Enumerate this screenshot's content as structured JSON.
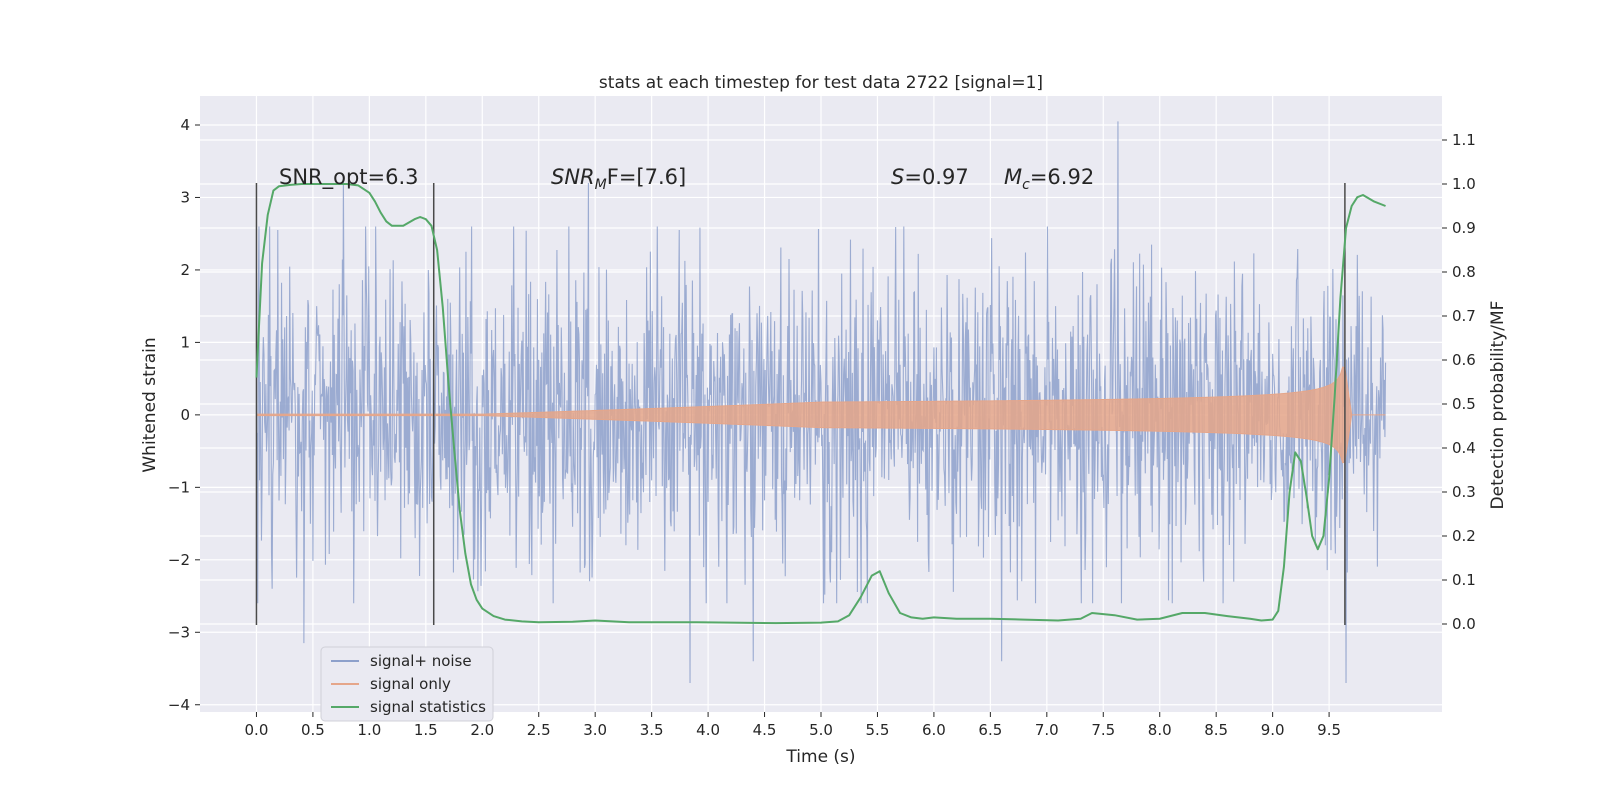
{
  "chart_data": {
    "type": "line",
    "title": "stats at each timestep for test data 2722 [signal=1]",
    "xlabel": "Time (s)",
    "ylabel_left": "Whitened strain",
    "ylabel_right": "Detection probability/MF",
    "xlim": [
      -0.5,
      10.5
    ],
    "ylim_left": [
      -4.1,
      4.4
    ],
    "ylim_right": [
      -0.2,
      1.2
    ],
    "x_ticks": [
      "0.0",
      "0.5",
      "1.0",
      "1.5",
      "2.0",
      "2.5",
      "3.0",
      "3.5",
      "4.0",
      "4.5",
      "5.0",
      "5.5",
      "6.0",
      "6.5",
      "7.0",
      "7.5",
      "8.0",
      "8.5",
      "9.0",
      "9.5"
    ],
    "y_ticks_left": [
      "4",
      "3",
      "2",
      "1",
      "0",
      "−1",
      "−2",
      "−3",
      "−4"
    ],
    "y_ticks_right": [
      "1.1",
      "1.0",
      "0.9",
      "0.8",
      "0.7",
      "0.6",
      "0.5",
      "0.4",
      "0.3",
      "0.2",
      "0.1",
      "0.0"
    ],
    "grid": true,
    "annotations": {
      "snr_opt": "SNR_opt=6.3",
      "snr_mf_sym": "SNR",
      "snr_mf_sub": "M",
      "snr_mf_rest": "F=[7.6]",
      "s_sym": "S",
      "s_rest": "=0.97",
      "mc_sym": "M",
      "mc_sub": "c",
      "mc_rest": "=6.92"
    },
    "vertical_markers_s": [
      0.0,
      1.57,
      9.64
    ],
    "legend": {
      "position": "lower-left",
      "entries": [
        "signal+ noise",
        "signal only",
        "signal statistics"
      ]
    },
    "series": [
      {
        "name": "signal+ noise",
        "axis": "left",
        "color": "#8da0cb",
        "style": "noise band",
        "x_range": [
          0.0,
          10.0
        ],
        "typical_amplitude": 1.4,
        "notable_peaks": [
          {
            "x": 0.77,
            "y": 3.3
          },
          {
            "x": 2.94,
            "y": 3.2
          },
          {
            "x": 7.63,
            "y": 4.05
          },
          {
            "x": 0.42,
            "y": -3.15
          },
          {
            "x": 3.84,
            "y": -3.7
          },
          {
            "x": 4.4,
            "y": -3.4
          },
          {
            "x": 6.6,
            "y": -3.4
          },
          {
            "x": 9.65,
            "y": -3.7
          }
        ]
      },
      {
        "name": "signal only",
        "axis": "left",
        "color": "#e5a68a",
        "style": "chirp",
        "x_range": [
          0.0,
          10.0
        ],
        "peak_time": 9.64,
        "peak_amplitude": 0.65
      },
      {
        "name": "signal statistics",
        "axis": "right",
        "color": "#55a868",
        "x": [
          0.0,
          0.05,
          0.1,
          0.15,
          0.2,
          0.3,
          0.4,
          0.5,
          0.6,
          0.7,
          0.8,
          0.9,
          1.0,
          1.05,
          1.1,
          1.15,
          1.2,
          1.3,
          1.4,
          1.45,
          1.5,
          1.55,
          1.6,
          1.65,
          1.7,
          1.75,
          1.8,
          1.85,
          1.9,
          1.95,
          2.0,
          2.1,
          2.2,
          2.35,
          2.5,
          2.8,
          3.0,
          3.3,
          3.6,
          3.9,
          4.2,
          4.6,
          5.0,
          5.15,
          5.25,
          5.35,
          5.45,
          5.52,
          5.6,
          5.7,
          5.8,
          5.9,
          6.0,
          6.2,
          6.5,
          6.8,
          7.1,
          7.3,
          7.4,
          7.6,
          7.8,
          8.0,
          8.2,
          8.4,
          8.6,
          8.8,
          8.9,
          9.0,
          9.05,
          9.1,
          9.15,
          9.2,
          9.25,
          9.3,
          9.35,
          9.4,
          9.45,
          9.5,
          9.55,
          9.6,
          9.65,
          9.7,
          9.75,
          9.8,
          9.9,
          10.0
        ],
        "y": [
          0.56,
          0.82,
          0.93,
          0.985,
          0.995,
          0.998,
          1.0,
          1.0,
          1.0,
          1.0,
          1.0,
          0.997,
          0.98,
          0.96,
          0.935,
          0.915,
          0.905,
          0.905,
          0.92,
          0.925,
          0.92,
          0.905,
          0.85,
          0.72,
          0.55,
          0.4,
          0.26,
          0.16,
          0.09,
          0.055,
          0.035,
          0.018,
          0.01,
          0.006,
          0.004,
          0.005,
          0.008,
          0.004,
          0.004,
          0.004,
          0.003,
          0.002,
          0.003,
          0.006,
          0.02,
          0.06,
          0.11,
          0.12,
          0.07,
          0.025,
          0.015,
          0.012,
          0.015,
          0.012,
          0.012,
          0.01,
          0.008,
          0.012,
          0.025,
          0.02,
          0.01,
          0.012,
          0.025,
          0.025,
          0.018,
          0.012,
          0.008,
          0.01,
          0.03,
          0.13,
          0.3,
          0.39,
          0.37,
          0.29,
          0.2,
          0.17,
          0.2,
          0.33,
          0.52,
          0.74,
          0.9,
          0.95,
          0.97,
          0.975,
          0.96,
          0.95
        ]
      }
    ]
  }
}
